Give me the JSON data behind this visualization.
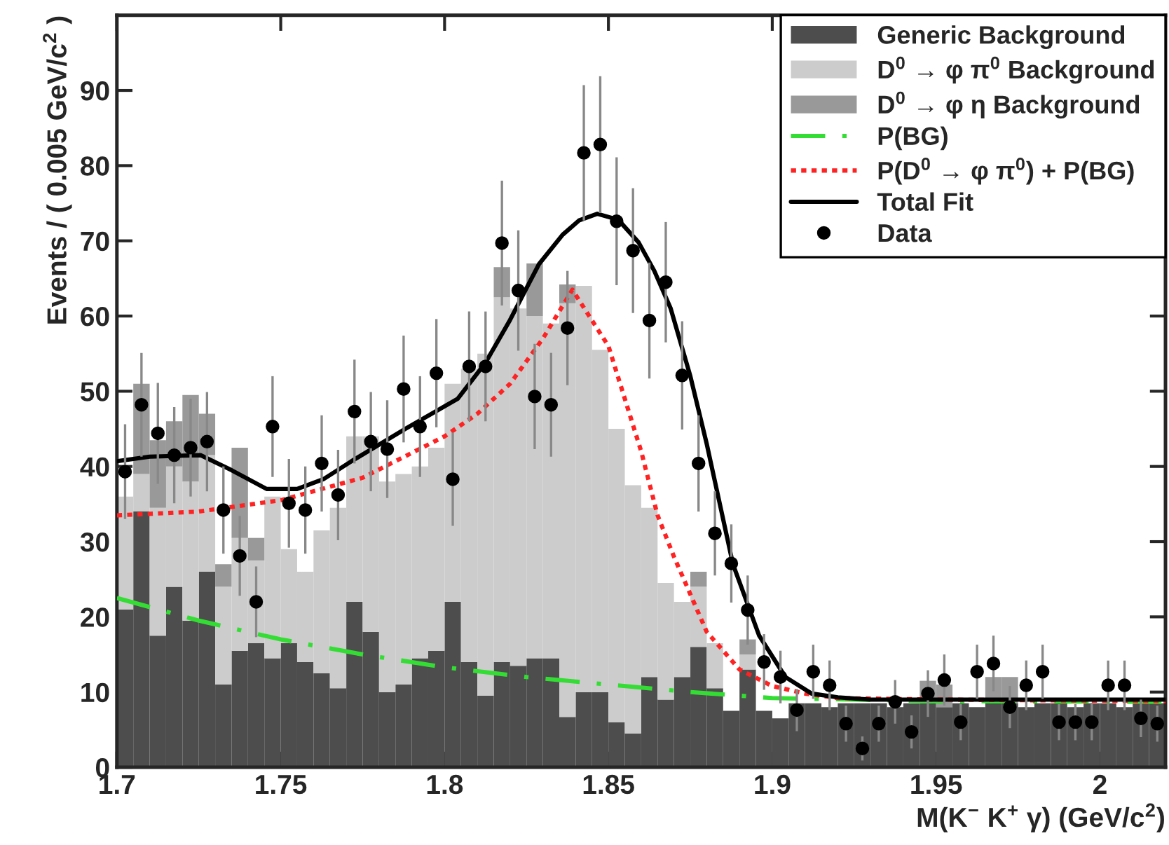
{
  "chart_data": {
    "type": "bar",
    "stacked": true,
    "xlabel": "M(K$^{−}$ K$^{+}$ γ) (GeV/c$^{2}$)",
    "ylabel": "Events / ( 0.005 GeV/c$^{2}$ )",
    "x": [
      1.7025,
      1.7075,
      1.7125,
      1.7175,
      1.7225,
      1.7275,
      1.7325,
      1.7375,
      1.7425,
      1.7475,
      1.7525,
      1.7575,
      1.7625,
      1.7675,
      1.7725,
      1.7775,
      1.7825,
      1.7875,
      1.7925,
      1.7975,
      1.8025,
      1.8075,
      1.8125,
      1.8175,
      1.8225,
      1.8275,
      1.8325,
      1.8375,
      1.8425,
      1.8475,
      1.8525,
      1.8575,
      1.8625,
      1.8675,
      1.8725,
      1.8775,
      1.8825,
      1.8875,
      1.8925,
      1.8975,
      1.9025,
      1.9075,
      1.9125,
      1.9175,
      1.9225,
      1.9275,
      1.9325,
      1.9375,
      1.9425,
      1.9475,
      1.9525,
      1.9575,
      1.9625,
      1.9675,
      1.9725,
      1.9775,
      1.9825,
      1.9875,
      1.9925,
      1.9975,
      2.0025,
      2.0075,
      2.0125,
      2.0175
    ],
    "xlim": [
      1.7,
      2.02
    ],
    "xticks": [
      1.7,
      1.75,
      1.8,
      1.85,
      1.9,
      1.95,
      2
    ],
    "ylim": [
      0,
      100
    ],
    "yticks": [
      0,
      10,
      20,
      30,
      40,
      50,
      60,
      70,
      80,
      90
    ],
    "legend": "top right",
    "series": [
      {
        "name": "Generic Background",
        "color": "#4d4d4d",
        "values": [
          21,
          34,
          17.5,
          24,
          19.5,
          26,
          11,
          15.5,
          16.5,
          14.5,
          16.5,
          14,
          12.5,
          10.5,
          22,
          18,
          10,
          11,
          14.5,
          15.5,
          22,
          14,
          9.5,
          14,
          13.5,
          14.5,
          14.5,
          6.7,
          10,
          10,
          6,
          4.5,
          12,
          9,
          12,
          16,
          10.5,
          7.5,
          13,
          7.5,
          6.5,
          8.5,
          8.5,
          8,
          8.5,
          8.5,
          8.5,
          8,
          8.5,
          8.5,
          8,
          8.5,
          8,
          8.5,
          8.5,
          8,
          8.5,
          8.5,
          8,
          8.5,
          8.5,
          8,
          8.5,
          8.5
        ]
      },
      {
        "name": "D$^{0}$ → φ π$^{0}$ Background",
        "color": "#cccccc",
        "values": [
          15,
          5,
          17,
          16,
          18.5,
          15.5,
          13,
          15,
          11,
          21.5,
          12.5,
          12,
          19,
          24,
          22,
          26,
          28,
          28,
          25.5,
          27,
          29,
          39,
          45.5,
          48.5,
          47.5,
          45.5,
          44.5,
          55,
          54,
          45.5,
          39,
          33,
          22.5,
          15.5,
          10,
          8,
          6,
          0,
          2,
          0,
          0,
          0,
          0,
          0,
          0,
          0,
          0,
          0,
          0,
          0,
          0,
          0,
          0,
          0,
          0,
          0,
          0,
          0,
          0,
          0,
          0,
          0,
          0,
          0
        ]
      },
      {
        "name": "D$^{0}$ → φ η Background",
        "color": "#999999",
        "values": [
          0,
          12,
          9,
          6,
          11.5,
          5.5,
          3,
          12,
          3,
          0,
          0,
          0,
          0,
          0,
          0,
          0,
          0,
          0,
          0,
          0,
          0,
          0,
          0,
          4,
          0,
          7,
          0,
          2.5,
          0,
          0,
          0,
          0,
          0,
          0,
          0,
          2,
          0,
          0,
          2,
          0,
          0,
          0,
          0,
          0,
          0,
          0,
          0,
          0,
          0,
          3,
          3,
          0,
          0,
          3.5,
          3.5,
          0,
          0,
          0,
          0,
          0,
          0,
          0,
          0,
          0
        ]
      },
      {
        "name": "P(BG)",
        "type": "line",
        "color": "#33dd33",
        "line_style": "dashed",
        "x": [
          1.7,
          1.725,
          1.75,
          1.775,
          1.8,
          1.825,
          1.85,
          1.875,
          1.9,
          1.95,
          2.02
        ],
        "values": [
          22.5,
          19.5,
          17,
          15,
          13.3,
          12,
          11,
          10,
          9.2,
          8.8,
          8.7
        ]
      },
      {
        "name": "P(D$^{0}$ → φ π$^{0}$) + P(BG)",
        "type": "line",
        "color": "#ff2222",
        "line_style": "dotted",
        "x": [
          1.7,
          1.725,
          1.75,
          1.775,
          1.8,
          1.81,
          1.82,
          1.83,
          1.839,
          1.85,
          1.86,
          1.865,
          1.87,
          1.88,
          1.89,
          1.9,
          1.91,
          1.92,
          1.95,
          2.02
        ],
        "values": [
          33.5,
          34,
          35.5,
          38.5,
          44,
          47,
          51,
          57,
          63.5,
          56,
          42,
          33.5,
          28,
          18,
          13,
          10.8,
          9.8,
          9.2,
          9,
          8.8
        ]
      },
      {
        "name": "Total Fit",
        "type": "line",
        "color": "#000000",
        "line_style": "solid",
        "x": [
          1.7,
          1.71,
          1.7255,
          1.735,
          1.7457,
          1.755,
          1.763,
          1.7716,
          1.788,
          1.804,
          1.8125,
          1.82,
          1.8288,
          1.836,
          1.841,
          1.8466,
          1.853,
          1.8592,
          1.864,
          1.869,
          1.875,
          1.88,
          1.888,
          1.896,
          1.904,
          1.912,
          1.92,
          1.93,
          1.96,
          2.02
        ],
        "values": [
          40.7,
          41.3,
          41.5,
          39.5,
          37,
          37,
          38.3,
          40.7,
          45,
          49,
          53.8,
          59.5,
          66.9,
          70.8,
          72.7,
          73.6,
          72.8,
          69.8,
          66,
          61,
          52,
          43,
          27,
          17.5,
          12,
          9.8,
          9.3,
          9,
          9,
          9
        ]
      },
      {
        "name": "Data",
        "type": "scatter",
        "color": "#000000",
        "marker": "circle",
        "x": [
          1.7025,
          1.7075,
          1.7125,
          1.7175,
          1.7225,
          1.7275,
          1.7325,
          1.7375,
          1.7425,
          1.7475,
          1.7525,
          1.7575,
          1.7625,
          1.7675,
          1.7725,
          1.7775,
          1.7825,
          1.7875,
          1.7925,
          1.7975,
          1.8025,
          1.8075,
          1.8125,
          1.8175,
          1.8225,
          1.8275,
          1.8325,
          1.8375,
          1.8425,
          1.8475,
          1.8525,
          1.8575,
          1.8625,
          1.8675,
          1.8725,
          1.8775,
          1.8825,
          1.8875,
          1.8925,
          1.8975,
          1.9025,
          1.9075,
          1.9125,
          1.9175,
          1.9225,
          1.9275,
          1.9325,
          1.9375,
          1.9425,
          1.9475,
          1.9525,
          1.9575,
          1.9625,
          1.9675,
          1.9725,
          1.9775,
          1.9825,
          1.9875,
          1.9925,
          1.9975,
          2.0025,
          2.0075,
          2.0125,
          2.0175
        ],
        "values": [
          39.3,
          48.2,
          44.4,
          41.5,
          42.5,
          43.3,
          34.2,
          28.1,
          22,
          45.3,
          35.1,
          34.2,
          40.4,
          36.2,
          47.3,
          43.3,
          42.3,
          50.3,
          45.3,
          52.4,
          38.3,
          53.3,
          53.3,
          69.7,
          63.4,
          49.3,
          48.2,
          58.4,
          81.7,
          82.8,
          72.6,
          68.7,
          59.4,
          64.5,
          52.1,
          40.4,
          31.1,
          27.1,
          20.9,
          14,
          12,
          7.6,
          12.7,
          10.9,
          5.8,
          2.5,
          5.8,
          8.7,
          4.7,
          9.8,
          11.6,
          6,
          12.7,
          13.8,
          8,
          10.9,
          12.7,
          6,
          6,
          6,
          10.9,
          10.9,
          6.5,
          5.8
        ],
        "errors": [
          6.3,
          6.9,
          6.7,
          6.4,
          6.5,
          6.6,
          5.8,
          5.3,
          4.7,
          6.7,
          5.9,
          5.8,
          6.4,
          6,
          6.9,
          6.6,
          6.5,
          7.1,
          6.7,
          7.2,
          6.2,
          7.3,
          7.3,
          8.3,
          8,
          7,
          6.9,
          7.6,
          9,
          9.1,
          8.5,
          8.3,
          7.7,
          8,
          7.2,
          6.4,
          5.6,
          5.2,
          4.6,
          3.7,
          3.5,
          2.8,
          3.6,
          3.3,
          2.4,
          1.6,
          2.4,
          2.9,
          2.2,
          3.1,
          3.4,
          2.4,
          3.6,
          3.7,
          2.8,
          3.3,
          3.6,
          2.4,
          2.4,
          2.4,
          3.3,
          3.3,
          2.5,
          2.4
        ]
      }
    ]
  }
}
